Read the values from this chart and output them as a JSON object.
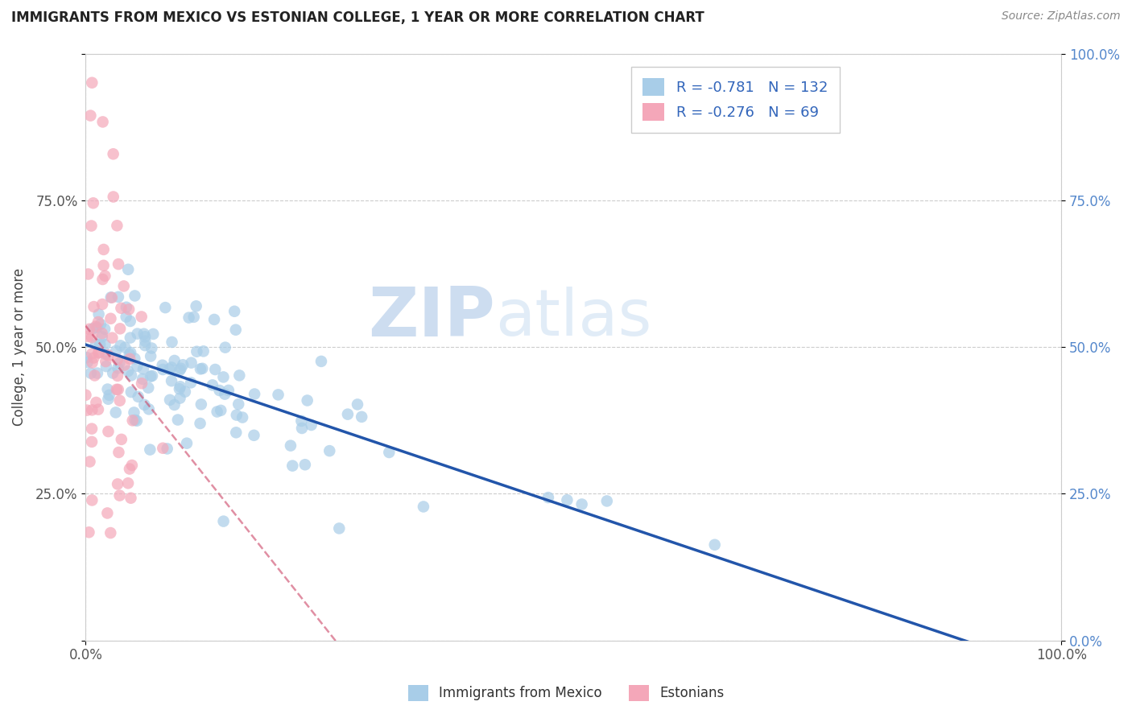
{
  "title": "IMMIGRANTS FROM MEXICO VS ESTONIAN COLLEGE, 1 YEAR OR MORE CORRELATION CHART",
  "source": "Source: ZipAtlas.com",
  "xlabel": "",
  "ylabel": "College, 1 year or more",
  "legend_label1": "Immigrants from Mexico",
  "legend_label2": "Estonians",
  "r1": -0.781,
  "n1": 132,
  "r2": -0.276,
  "n2": 69,
  "color_blue": "#A8CDE8",
  "color_pink": "#F4A7B9",
  "line_color_blue": "#2255AA",
  "line_color_pink": "#CC4466",
  "watermark_zip": "ZIP",
  "watermark_atlas": "atlas",
  "bg_color": "#FFFFFF",
  "grid_color": "#CCCCCC",
  "title_color": "#333333",
  "figsize": [
    14.06,
    8.92
  ],
  "dpi": 100,
  "seed": 123
}
